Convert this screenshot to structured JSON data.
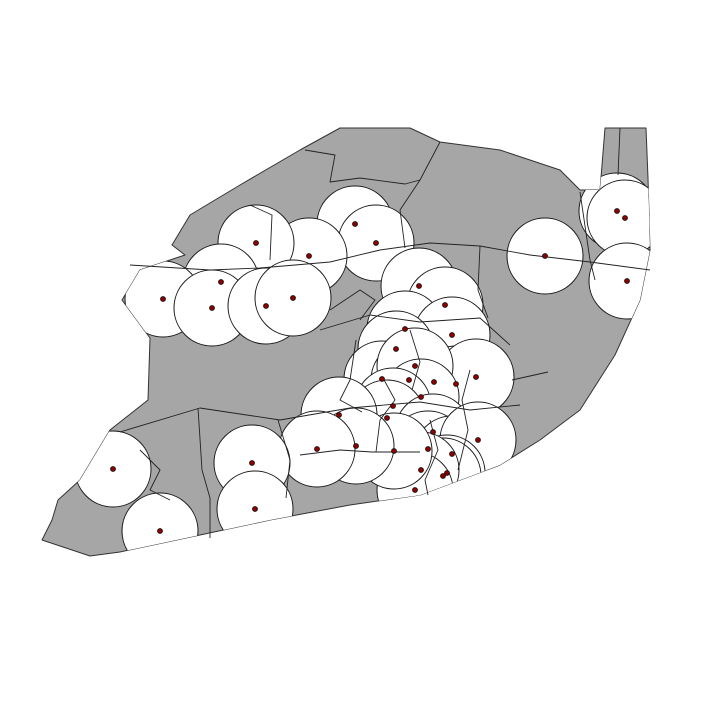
{
  "colors": {
    "background": "#ffffff",
    "land_fill": "#a6a6a6",
    "buffer_fill": "#ffffff",
    "outline": "#222222",
    "point_fill": "#8b0000"
  },
  "map": {
    "layers": [
      "parish-boundaries",
      "buffer-zones",
      "sample-points"
    ],
    "point_count": 41
  }
}
